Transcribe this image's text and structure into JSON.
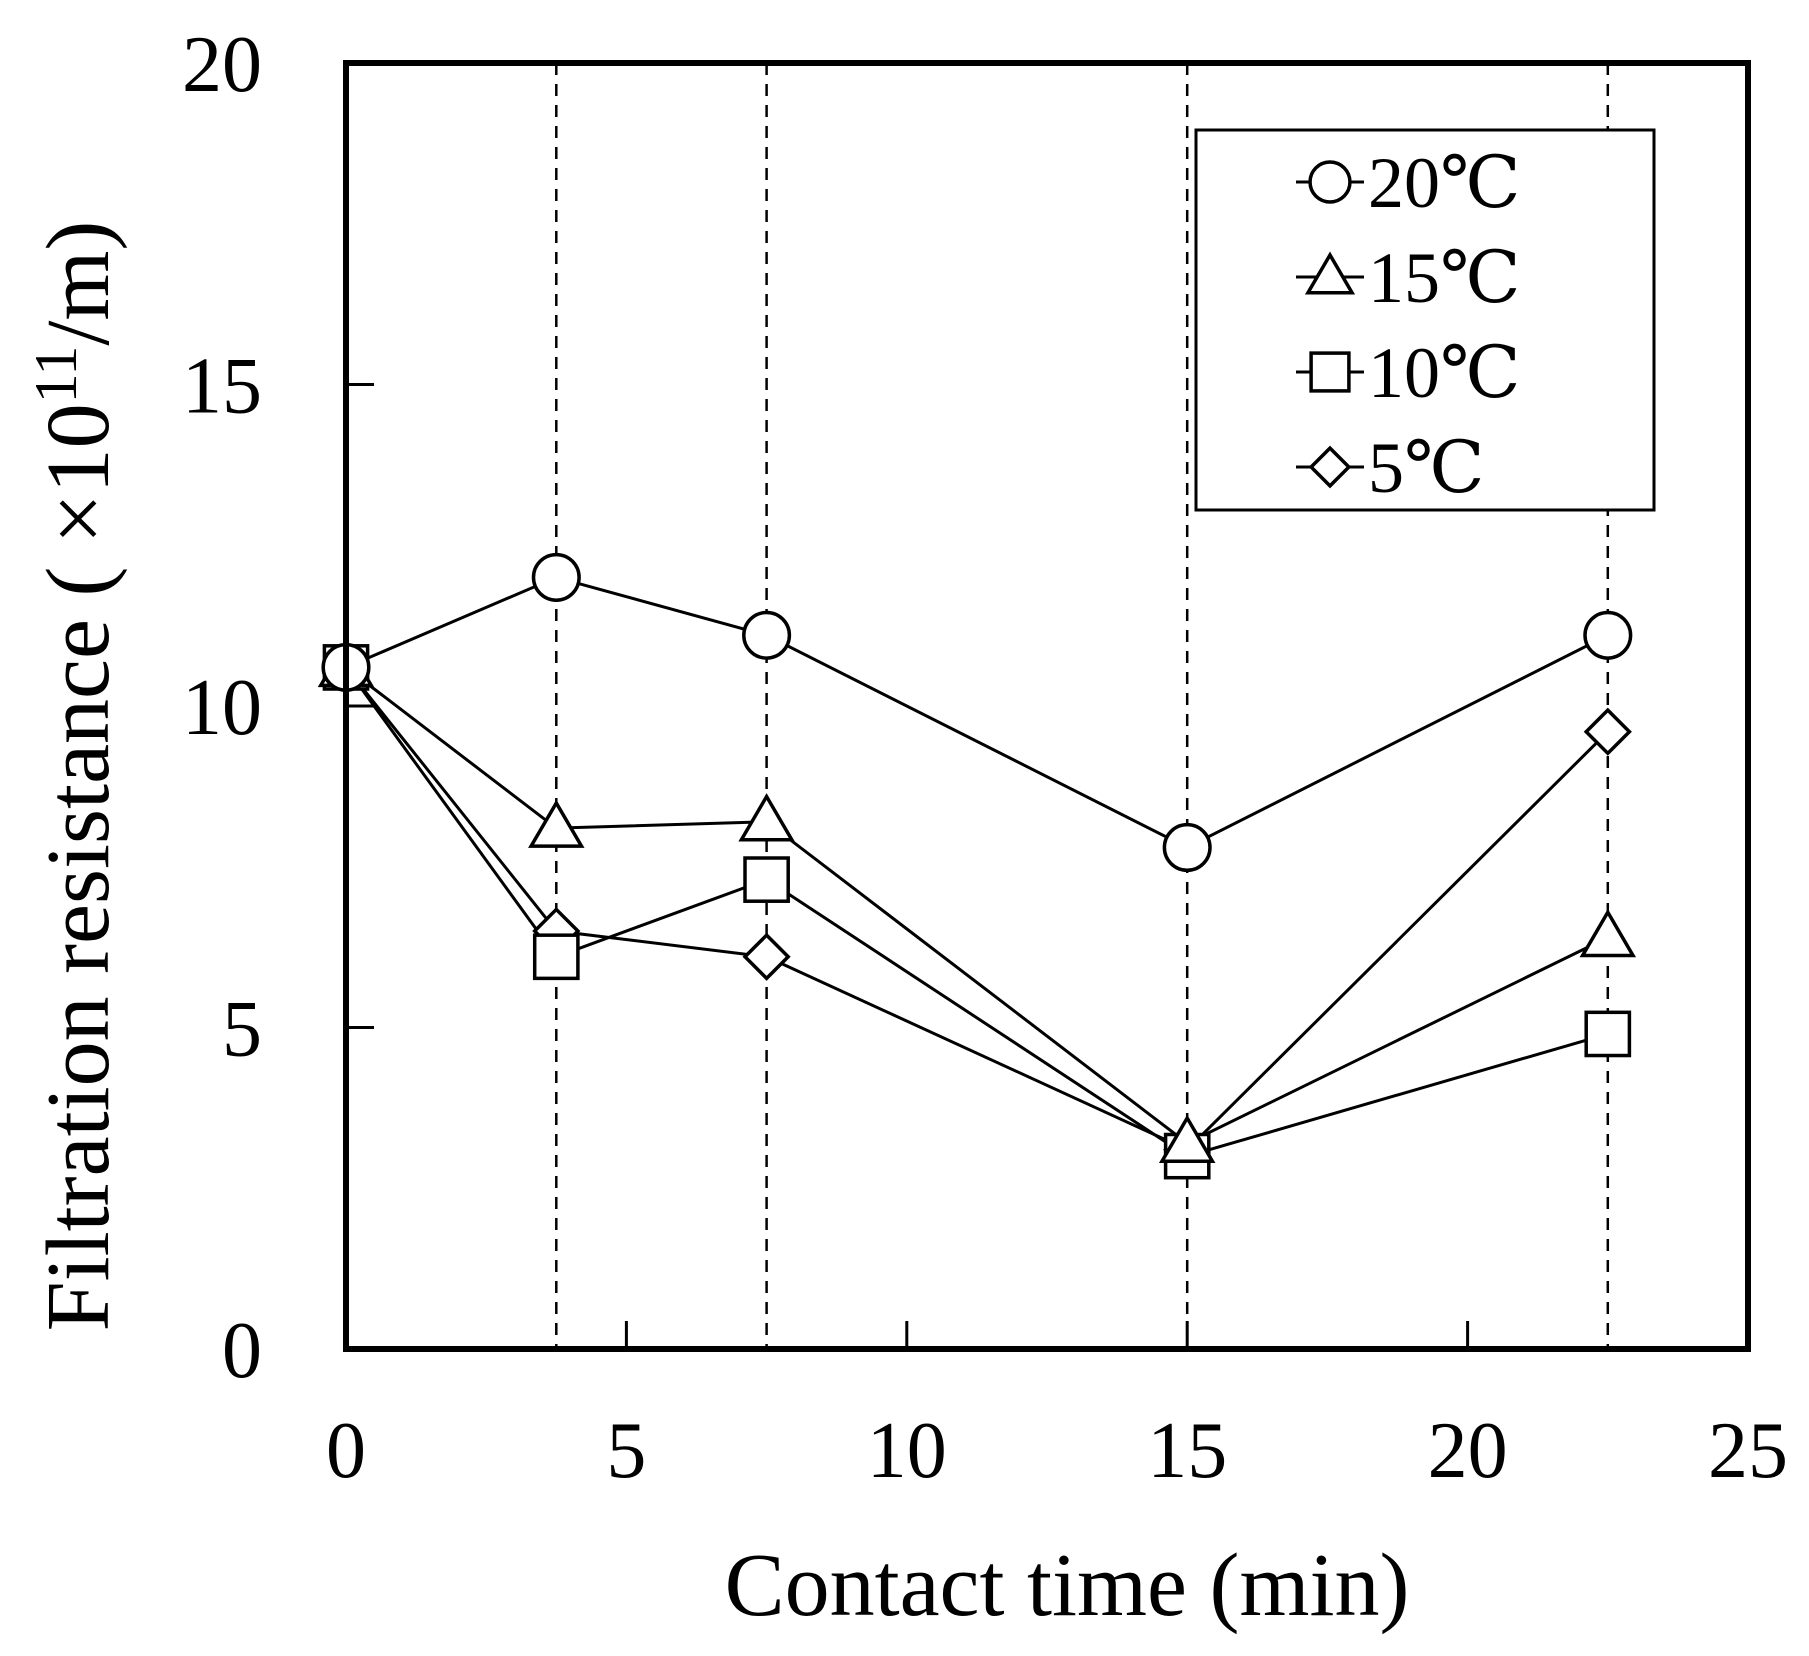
{
  "chart_data": {
    "type": "line",
    "xlabel": "Contact time (min)",
    "ylabel_prefix": "Filtration resistance ( ",
    "ylabel_times": "×",
    "ylabel_base": "10",
    "ylabel_exponent": "11",
    "ylabel_suffix": "/m)",
    "xlim": [
      0,
      25
    ],
    "ylim": [
      0,
      20
    ],
    "xticks": [
      0,
      5,
      10,
      15,
      20,
      25
    ],
    "yticks": [
      0,
      5,
      10,
      15,
      20
    ],
    "vertical_guides": [
      3.75,
      7.5,
      15,
      22.5
    ],
    "legend_position": "top-right",
    "series": [
      {
        "name": "20℃",
        "marker": "circle",
        "x": [
          0,
          3.75,
          7.5,
          15,
          22.5
        ],
        "y": [
          10.6,
          12.0,
          11.1,
          7.8,
          11.1
        ]
      },
      {
        "name": "15℃",
        "marker": "triangle",
        "x": [
          0,
          3.75,
          7.5,
          15,
          22.5
        ],
        "y": [
          10.6,
          8.1,
          8.2,
          3.2,
          6.4
        ]
      },
      {
        "name": "10℃",
        "marker": "square",
        "x": [
          0,
          3.75,
          7.5,
          15,
          22.5
        ],
        "y": [
          10.6,
          6.1,
          7.3,
          3.0,
          4.9
        ]
      },
      {
        "name": "5℃",
        "marker": "diamond",
        "x": [
          0,
          3.75,
          7.5,
          15,
          22.5
        ],
        "y": [
          10.6,
          6.5,
          6.1,
          3.1,
          9.6
        ]
      }
    ]
  }
}
